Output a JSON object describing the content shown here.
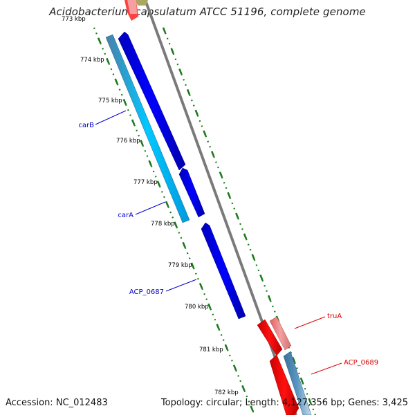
{
  "header": {
    "title": "Acidobacterium capsulatum ATCC 51196, complete genome"
  },
  "footer": {
    "accession": "Accession: NC_012483",
    "summary": "Topology: circular; Length: 4,127,356 bp; Genes: 3,425"
  },
  "colors": {
    "backbone": "#808080",
    "ticks": "#1a7a1a",
    "forward_gene": "#0000ee",
    "forward_cds": "#00bfff",
    "forward_cds_dark": "#4b86b4",
    "reverse_gene": "#ee0000",
    "reverse_rna": "#f08080",
    "reverse_cds": "#4682b4",
    "label_forward": "#0000cc",
    "label_reverse": "#dd0000",
    "tick_label": "#000000"
  },
  "ruler": {
    "tick_labels": [
      "773 kbp",
      "774 kbp",
      "775 kbp",
      "776 kbp",
      "777 kbp",
      "778 kbp",
      "779 kbp",
      "780 kbp",
      "781 kbp",
      "782 kbp"
    ]
  },
  "genes": {
    "labels": [
      {
        "name": "carB",
        "strand": "forward"
      },
      {
        "name": "carA",
        "strand": "forward"
      },
      {
        "name": "ACP_0687",
        "strand": "forward"
      },
      {
        "name": "truA",
        "strand": "reverse"
      },
      {
        "name": "ACP_0689",
        "strand": "reverse"
      }
    ]
  }
}
